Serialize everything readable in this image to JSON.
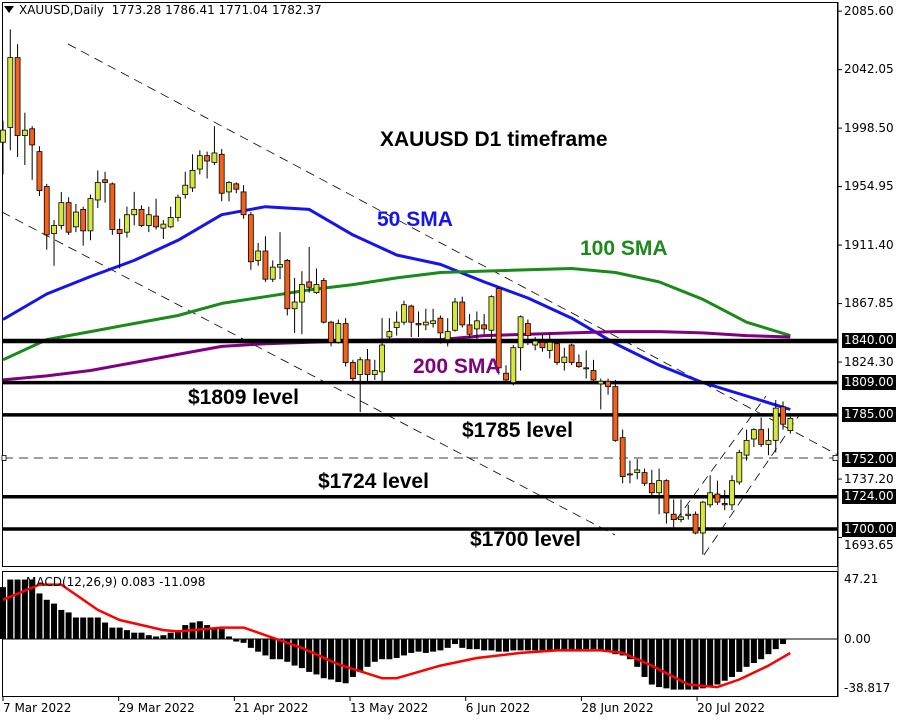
{
  "header": {
    "symbol": "XAUUSD,Daily",
    "ohlc": "1773.28 1786.41 1771.04 1782.37"
  },
  "macd_header": "MACD(12,26,9) 0.083 -11.098",
  "annotations": {
    "title": "XAUUSD D1 timeframe",
    "sma50": "50 SMA",
    "sma100": "100 SMA",
    "sma200": "200 SMA",
    "level1809": "$1809 level",
    "level1785": "$1785 level",
    "level1724": "$1724 level",
    "level1700": "$1700 level"
  },
  "colors": {
    "bull": "#d7e83c",
    "bear": "#f2601a",
    "sma50": "#1414f0",
    "sma100": "#1a8a1a",
    "sma200": "#800080",
    "signal": "#ff0000",
    "histogram": "#000000"
  },
  "chart_data": [
    {
      "type": "candlestick",
      "title": "XAUUSD D1 timeframe",
      "price_axis_labels": [
        "2085.60",
        "2042.05",
        "1998.50",
        "1954.95",
        "1911.40",
        "1867.85",
        "1824.30",
        "1737.20",
        "1693.65"
      ],
      "highlighted_levels": [
        "1840.00",
        "1809.00",
        "1785.00",
        "1752.00",
        "1724.00",
        "1700.00"
      ],
      "ylim": [
        1687,
        2094
      ],
      "date_labels": [
        "7 Mar 2022",
        "29 Mar 2022",
        "21 Apr 2022",
        "13 May 2022",
        "6 Jun 2022",
        "28 Jun 2022",
        "20 Jul 2022"
      ],
      "ohlc": [
        [
          1988,
          2004,
          1964,
          1997
        ],
        [
          1999,
          2072,
          1982,
          2051
        ],
        [
          2051,
          2061,
          1977,
          1993
        ],
        [
          1993,
          2010,
          1971,
          1997
        ],
        [
          1998,
          2000,
          1960,
          1986
        ],
        [
          1981,
          1985,
          1948,
          1952
        ],
        [
          1955,
          1957,
          1908,
          1919
        ],
        [
          1920,
          1930,
          1896,
          1926
        ],
        [
          1926,
          1951,
          1923,
          1943
        ],
        [
          1943,
          1947,
          1919,
          1921
        ],
        [
          1925,
          1942,
          1921,
          1936
        ],
        [
          1938,
          1940,
          1911,
          1922
        ],
        [
          1922,
          1949,
          1915,
          1946
        ],
        [
          1945,
          1967,
          1939,
          1958
        ],
        [
          1960,
          1966,
          1943,
          1958
        ],
        [
          1957,
          1958,
          1919,
          1923
        ],
        [
          1923,
          1931,
          1894,
          1920
        ],
        [
          1921,
          1940,
          1917,
          1934
        ],
        [
          1934,
          1951,
          1926,
          1938
        ],
        [
          1938,
          1941,
          1925,
          1926
        ],
        [
          1926,
          1940,
          1921,
          1934
        ],
        [
          1933,
          1946,
          1923,
          1925
        ],
        [
          1924,
          1930,
          1916,
          1927
        ],
        [
          1925,
          1940,
          1924,
          1932
        ],
        [
          1932,
          1949,
          1929,
          1947
        ],
        [
          1949,
          1966,
          1946,
          1956
        ],
        [
          1954,
          1979,
          1951,
          1967
        ],
        [
          1968,
          1982,
          1964,
          1978
        ],
        [
          1978,
          1981,
          1961,
          1974
        ],
        [
          1973,
          2000,
          1971,
          1980
        ],
        [
          1979,
          1983,
          1944,
          1950
        ],
        [
          1951,
          1959,
          1944,
          1958
        ],
        [
          1957,
          1958,
          1950,
          1953
        ],
        [
          1951,
          1956,
          1931,
          1934
        ],
        [
          1934,
          1936,
          1893,
          1899
        ],
        [
          1900,
          1913,
          1896,
          1907
        ],
        [
          1907,
          1918,
          1884,
          1886
        ],
        [
          1886,
          1900,
          1884,
          1895
        ],
        [
          1895,
          1921,
          1886,
          1897
        ],
        [
          1900,
          1901,
          1859,
          1864
        ],
        [
          1864,
          1887,
          1846,
          1869
        ],
        [
          1869,
          1892,
          1845,
          1882
        ],
        [
          1884,
          1910,
          1876,
          1880
        ],
        [
          1876,
          1894,
          1875,
          1882
        ],
        [
          1885,
          1887,
          1853,
          1854
        ],
        [
          1854,
          1855,
          1836,
          1839
        ],
        [
          1839,
          1856,
          1838,
          1853
        ],
        [
          1853,
          1857,
          1821,
          1824
        ],
        [
          1824,
          1826,
          1809,
          1812
        ],
        [
          1815,
          1828,
          1787,
          1826
        ],
        [
          1826,
          1834,
          1810,
          1815
        ],
        [
          1815,
          1826,
          1811,
          1818
        ],
        [
          1817,
          1857,
          1809,
          1837
        ],
        [
          1843,
          1857,
          1841,
          1847
        ],
        [
          1850,
          1862,
          1844,
          1854
        ],
        [
          1854,
          1870,
          1852,
          1867
        ],
        [
          1866,
          1867,
          1843,
          1854
        ],
        [
          1853,
          1862,
          1843,
          1852
        ],
        [
          1852,
          1864,
          1848,
          1854
        ],
        [
          1853,
          1864,
          1850,
          1855
        ],
        [
          1857,
          1859,
          1838,
          1846
        ],
        [
          1841,
          1857,
          1836,
          1847
        ],
        [
          1848,
          1872,
          1847,
          1869
        ],
        [
          1869,
          1873,
          1850,
          1852
        ],
        [
          1852,
          1860,
          1842,
          1845
        ],
        [
          1849,
          1862,
          1841,
          1855
        ],
        [
          1852,
          1860,
          1845,
          1849
        ],
        [
          1848,
          1874,
          1841,
          1873
        ],
        [
          1879,
          1880,
          1815,
          1820
        ],
        [
          1816,
          1822,
          1808,
          1811
        ],
        [
          1809,
          1837,
          1807,
          1835
        ],
        [
          1835,
          1859,
          1818,
          1858
        ],
        [
          1853,
          1856,
          1837,
          1844
        ],
        [
          1837,
          1843,
          1833,
          1840
        ],
        [
          1839,
          1845,
          1832,
          1835
        ],
        [
          1833,
          1846,
          1827,
          1839
        ],
        [
          1838,
          1841,
          1822,
          1824
        ],
        [
          1824,
          1835,
          1818,
          1828
        ],
        [
          1837,
          1838,
          1822,
          1824
        ],
        [
          1824,
          1830,
          1820,
          1821
        ],
        [
          1820,
          1833,
          1812,
          1820
        ],
        [
          1818,
          1826,
          1809,
          1811
        ],
        [
          1808,
          1812,
          1789,
          1810
        ],
        [
          1810,
          1812,
          1800,
          1806
        ],
        [
          1806,
          1811,
          1765,
          1766
        ],
        [
          1768,
          1774,
          1734,
          1739
        ],
        [
          1741,
          1751,
          1734,
          1741
        ],
        [
          1742,
          1752,
          1737,
          1744
        ],
        [
          1742,
          1745,
          1732,
          1734
        ],
        [
          1734,
          1744,
          1725,
          1727
        ],
        [
          1727,
          1745,
          1711,
          1736
        ],
        [
          1736,
          1737,
          1704,
          1712
        ],
        [
          1711,
          1722,
          1699,
          1707
        ],
        [
          1707,
          1722,
          1705,
          1709
        ],
        [
          1710,
          1718,
          1707,
          1711
        ],
        [
          1711,
          1713,
          1696,
          1697
        ],
        [
          1697,
          1721,
          1681,
          1720
        ],
        [
          1718,
          1740,
          1716,
          1727
        ],
        [
          1726,
          1736,
          1718,
          1720
        ],
        [
          1719,
          1729,
          1714,
          1718
        ],
        [
          1718,
          1740,
          1714,
          1736
        ],
        [
          1735,
          1759,
          1733,
          1757
        ],
        [
          1755,
          1774,
          1751,
          1766
        ],
        [
          1767,
          1775,
          1761,
          1774
        ],
        [
          1774,
          1783,
          1761,
          1763
        ],
        [
          1763,
          1775,
          1755,
          1766
        ],
        [
          1766,
          1796,
          1757,
          1790
        ],
        [
          1791,
          1795,
          1774,
          1778
        ],
        [
          1773.28,
          1786.41,
          1771.04,
          1782.37
        ]
      ],
      "sma": [
        {
          "name": "50 SMA",
          "points": [
            [
              0,
              1856
            ],
            [
              6,
              1875
            ],
            [
              12,
              1888
            ],
            [
              18,
              1900
            ],
            [
              24,
              1915
            ],
            [
              30,
              1934
            ],
            [
              36,
              1940
            ],
            [
              42,
              1938
            ],
            [
              48,
              1919
            ],
            [
              54,
              1904
            ],
            [
              60,
              1897
            ],
            [
              66,
              1884
            ],
            [
              72,
              1872
            ],
            [
              78,
              1857
            ],
            [
              84,
              1838
            ],
            [
              90,
              1822
            ],
            [
              96,
              1809
            ],
            [
              102,
              1799
            ],
            [
              108,
              1789
            ]
          ]
        },
        {
          "name": "100 SMA",
          "points": [
            [
              0,
              1826
            ],
            [
              6,
              1841
            ],
            [
              12,
              1847
            ],
            [
              18,
              1853
            ],
            [
              24,
              1859
            ],
            [
              30,
              1868
            ],
            [
              36,
              1873
            ],
            [
              42,
              1878
            ],
            [
              48,
              1882
            ],
            [
              54,
              1887
            ],
            [
              60,
              1891
            ],
            [
              66,
              1892
            ],
            [
              72,
              1893
            ],
            [
              78,
              1894
            ],
            [
              84,
              1891
            ],
            [
              90,
              1884
            ],
            [
              96,
              1871
            ],
            [
              102,
              1854
            ],
            [
              108,
              1844
            ]
          ]
        },
        {
          "name": "200 SMA",
          "points": [
            [
              0,
              1811
            ],
            [
              6,
              1814
            ],
            [
              12,
              1818
            ],
            [
              18,
              1824
            ],
            [
              24,
              1830
            ],
            [
              30,
              1836
            ],
            [
              36,
              1838
            ],
            [
              42,
              1839
            ],
            [
              48,
              1840
            ],
            [
              54,
              1841
            ],
            [
              60,
              1841
            ],
            [
              66,
              1844
            ],
            [
              72,
              1845
            ],
            [
              78,
              1846
            ],
            [
              84,
              1847
            ],
            [
              90,
              1847
            ],
            [
              96,
              1846
            ],
            [
              102,
              1844
            ],
            [
              108,
              1843
            ]
          ]
        }
      ]
    },
    {
      "type": "bar",
      "title": "MACD(12,26,9)",
      "axis_labels": [
        "47.21",
        "0.00",
        "-38.817"
      ],
      "ylim": [
        -45.5,
        47.21
      ],
      "histogram": [
        41,
        47,
        47,
        47,
        47,
        36,
        31,
        28,
        23,
        21,
        17,
        17,
        17,
        17,
        13,
        9,
        9,
        7,
        5,
        5,
        3,
        2,
        3,
        5,
        7,
        11,
        13,
        14,
        11,
        9,
        8,
        2,
        -2,
        -3,
        -7,
        -10,
        -13,
        -16,
        -16,
        -18,
        -21,
        -23,
        -26,
        -28,
        -31,
        -32,
        -34,
        -35,
        -30,
        -26,
        -22,
        -18,
        -16,
        -16,
        -15,
        -13,
        -11,
        -10,
        -11,
        -10,
        -9,
        -7,
        -4,
        -7,
        -8,
        -8,
        -9,
        -9,
        -10,
        -10,
        -9,
        -9,
        -9,
        -9,
        -9,
        -9,
        -9,
        -9,
        -9,
        -9,
        -8,
        -8,
        -9,
        -10,
        -12,
        -13,
        -16,
        -22,
        -30,
        -36,
        -38,
        -39,
        -40,
        -40,
        -40,
        -40,
        -39,
        -38,
        -36,
        -33,
        -30,
        -26,
        -22,
        -19,
        -16,
        -12,
        -8,
        -4,
        0.083
      ],
      "signal": [
        [
          0,
          31
        ],
        [
          5,
          43
        ],
        [
          8,
          43
        ],
        [
          13,
          23
        ],
        [
          16,
          15
        ],
        [
          22,
          7
        ],
        [
          24,
          6
        ],
        [
          30,
          9
        ],
        [
          33,
          9
        ],
        [
          38,
          -1
        ],
        [
          41,
          -7
        ],
        [
          46,
          -20
        ],
        [
          52,
          -31
        ],
        [
          54,
          -31
        ],
        [
          60,
          -21
        ],
        [
          65,
          -15
        ],
        [
          71,
          -11
        ],
        [
          76,
          -9
        ],
        [
          82,
          -9
        ],
        [
          85,
          -11
        ],
        [
          89,
          -21
        ],
        [
          94,
          -36
        ],
        [
          98,
          -38
        ],
        [
          101,
          -32
        ],
        [
          105,
          -21
        ],
        [
          108,
          -11.098
        ]
      ]
    }
  ]
}
